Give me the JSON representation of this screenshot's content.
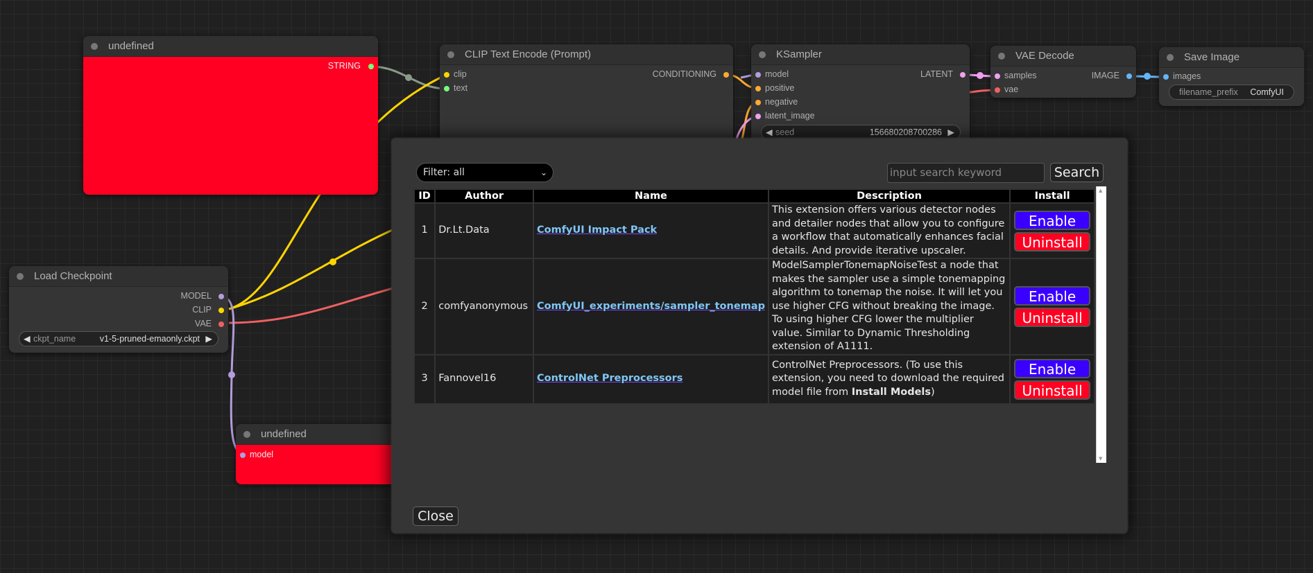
{
  "nodes": {
    "undefined_top": {
      "title": "undefined",
      "outputs": [
        "STRING"
      ],
      "color": "#ff0022"
    },
    "clip_text": {
      "title": "CLIP Text Encode (Prompt)",
      "inputs": [
        "clip",
        "text"
      ],
      "outputs": [
        "CONDITIONING"
      ]
    },
    "ksampler": {
      "title": "KSampler",
      "inputs": [
        "model",
        "positive",
        "negative",
        "latent_image"
      ],
      "outputs": [
        "LATENT"
      ],
      "seed_label": "seed",
      "seed_value": "156680208700286"
    },
    "vae_decode": {
      "title": "VAE Decode",
      "inputs": [
        "samples",
        "vae"
      ],
      "outputs": [
        "IMAGE"
      ]
    },
    "save_image": {
      "title": "Save Image",
      "inputs": [
        "images"
      ],
      "prefix_label": "filename_prefix",
      "prefix_value": "ComfyUI"
    },
    "load_checkpoint": {
      "title": "Load Checkpoint",
      "outputs": [
        "MODEL",
        "CLIP",
        "VAE"
      ],
      "ckpt_label": "ckpt_name",
      "ckpt_value": "v1-5-pruned-emaonly.ckpt"
    },
    "undefined_bottom": {
      "title": "undefined",
      "inputs": [
        "model"
      ]
    }
  },
  "dialog": {
    "filter": "Filter: all",
    "search_placeholder": "input search keyword",
    "search_label": "Search",
    "columns": [
      "ID",
      "Author",
      "Name",
      "Description",
      "Install"
    ],
    "rows": [
      {
        "id": "1",
        "author": "Dr.Lt.Data",
        "name": "ComfyUI Impact Pack",
        "description": "This extension offers various detector nodes and detailer nodes that allow you to configure a workflow that automatically enhances facial details. And provide iterative upscaler."
      },
      {
        "id": "2",
        "author": "comfyanonymous",
        "name": "ComfyUI_experiments/sampler_tonemap",
        "description": "ModelSamplerTonemapNoiseTest a node that makes the sampler use a simple tonemapping algorithm to tonemap the noise. It will let you use higher CFG without breaking the image. To using higher CFG lower the multiplier value. Similar to Dynamic Thresholding extension of A1111."
      },
      {
        "id": "3",
        "author": "Fannovel16",
        "name": "ControlNet Preprocessors",
        "description": "ControlNet Preprocessors. (To use this extension, you need to download the required model file from ",
        "description_bold": "Install Models",
        "description_end": ")"
      }
    ],
    "enable_label": "Enable",
    "uninstall_label": "Uninstall",
    "close_label": "Close",
    "colors": {
      "enable": "#3a00ff",
      "uninstall": "#ff0022"
    }
  }
}
